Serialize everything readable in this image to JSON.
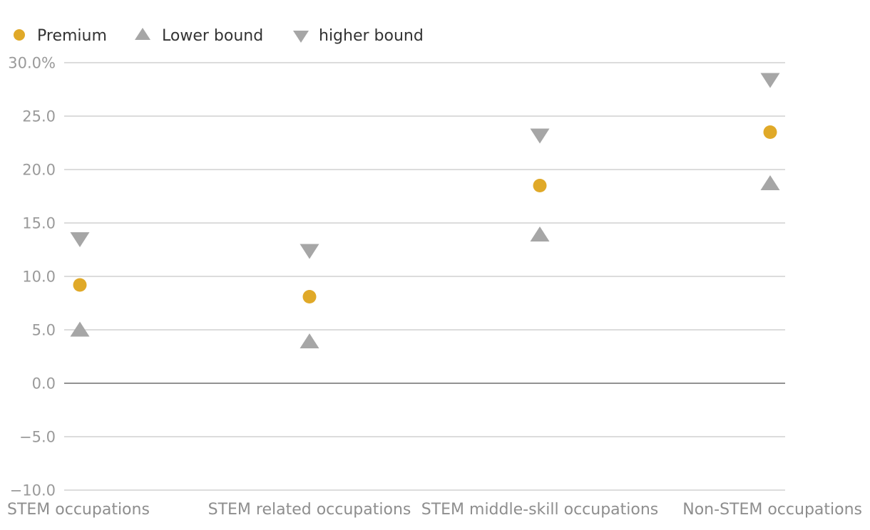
{
  "chart_data": {
    "type": "scatter",
    "title": "",
    "xlabel": "",
    "ylabel": "",
    "categories": [
      "STEM occupations",
      "STEM related occupations",
      "STEM middle-skill occupations",
      "Non-STEM occupations"
    ],
    "series": [
      {
        "name": "Premium",
        "marker": "circle",
        "color": "#e0a928",
        "values": [
          9.2,
          8.1,
          18.5,
          23.5
        ]
      },
      {
        "name": "Lower bound",
        "marker": "triangle-up",
        "color": "#a6a6a6",
        "values": [
          5.0,
          3.9,
          13.9,
          18.7
        ]
      },
      {
        "name": "higher bound",
        "marker": "triangle-down",
        "color": "#a6a6a6",
        "values": [
          13.5,
          12.4,
          23.2,
          28.4
        ]
      }
    ],
    "ylim": [
      -10,
      30
    ],
    "yticks": [
      30,
      25,
      20,
      15,
      10,
      5,
      0,
      -5,
      -10
    ],
    "ytick_labels": [
      "30.0%",
      "25.0",
      "20.0",
      "15.0",
      "10.0",
      "5.0",
      "0.0",
      "−5.0",
      "−10.0"
    ],
    "grid": true,
    "legend_position": "top-left"
  }
}
